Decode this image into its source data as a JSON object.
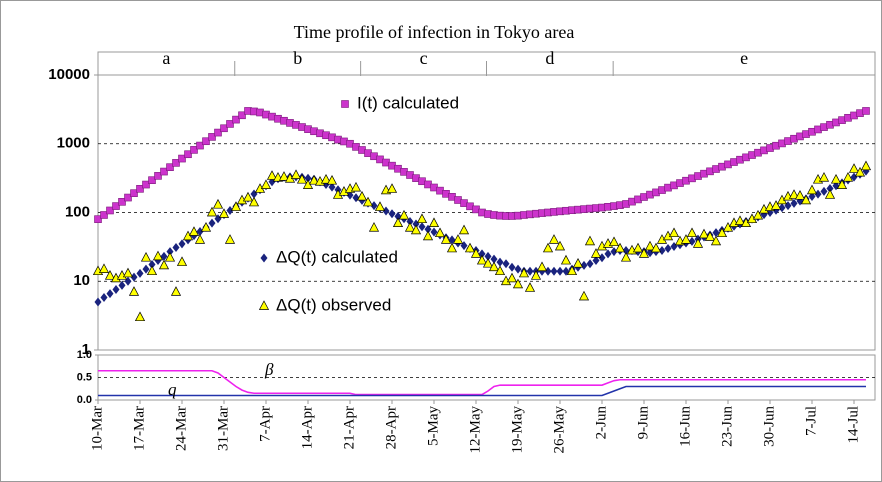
{
  "chart_data": {
    "type": "scatter",
    "title": "Time profile of infection in Tokyo area",
    "phases": [
      "a",
      "b",
      "c",
      "d",
      "e"
    ],
    "categories": [
      "10-Mar",
      null,
      null,
      null,
      null,
      null,
      null,
      "17-Mar",
      null,
      null,
      null,
      null,
      null,
      null,
      "24-Mar",
      null,
      null,
      null,
      null,
      null,
      null,
      "31-Mar",
      null,
      null,
      null,
      null,
      null,
      null,
      "7-Apr",
      null,
      null,
      null,
      null,
      null,
      null,
      "14-Apr",
      null,
      null,
      null,
      null,
      null,
      null,
      "21-Apr",
      null,
      null,
      null,
      null,
      null,
      null,
      "28-Apr",
      null,
      null,
      null,
      null,
      null,
      null,
      "5-May",
      null,
      null,
      null,
      null,
      null,
      null,
      "12-May",
      null,
      null,
      null,
      null,
      null,
      null,
      "19-May",
      null,
      null,
      null,
      null,
      null,
      null,
      "26-May",
      null,
      null,
      null,
      null,
      null,
      null,
      "2-Jun",
      null,
      null,
      null,
      null,
      null,
      null,
      "9-Jun",
      null,
      null,
      null,
      null,
      null,
      null,
      "16-Jun",
      null,
      null,
      null,
      null,
      null,
      null,
      "23-Jun",
      null,
      null,
      null,
      null,
      null,
      null,
      "30-Jun",
      null,
      null,
      null,
      null,
      null,
      null,
      "7-Jul",
      null,
      null,
      null,
      null,
      null,
      null,
      "14-Jul",
      null,
      null
    ],
    "ylim": [
      1,
      10000
    ],
    "yticks": [
      1,
      10,
      100,
      1000,
      10000
    ],
    "log_scale": true,
    "grid": true,
    "series": [
      {
        "name": "I(t) calculated",
        "color": "#cc33cc",
        "marker": "square",
        "values": [
          80,
          92,
          107,
          124,
          143,
          165,
          191,
          221,
          255,
          295,
          341,
          394,
          456,
          527,
          609,
          704,
          814,
          941,
          1088,
          1258,
          1454,
          1680,
          1942,
          2245,
          2595,
          3000,
          2950,
          2850,
          2660,
          2480,
          2310,
          2160,
          2010,
          1880,
          1750,
          1630,
          1520,
          1420,
          1330,
          1240,
          1150,
          1080,
          1000,
          900,
          811,
          730,
          658,
          592,
          533,
          480,
          433,
          390,
          351,
          316,
          285,
          256,
          231,
          208,
          187,
          169,
          152,
          137,
          123,
          111,
          100,
          95,
          92,
          90,
          89,
          89,
          90,
          92,
          94,
          96,
          98,
          100,
          102,
          104,
          106,
          108,
          110,
          112,
          114,
          116,
          118,
          121,
          124,
          128,
          133,
          144,
          155,
          168,
          182,
          196,
          212,
          230,
          248,
          268,
          290,
          314,
          339,
          367,
          397,
          429,
          464,
          501,
          542,
          586,
          634,
          685,
          741,
          801,
          866,
          936,
          1012,
          1094,
          1183,
          1279,
          1382,
          1494,
          1615,
          1746,
          1888,
          2041,
          2206,
          2385,
          2578,
          2787,
          3000
        ]
      },
      {
        "name": "ΔQ(t) calculated",
        "color": "#1a237e",
        "marker": "diamond",
        "values": [
          5,
          5.8,
          6.6,
          7.6,
          8.7,
          10,
          11.5,
          13,
          15,
          17.5,
          20,
          23,
          27,
          31,
          35,
          40,
          46,
          53,
          61,
          70,
          81,
          93,
          107,
          123,
          141,
          162,
          186,
          214,
          245,
          280,
          310,
          325,
          330,
          330,
          325,
          315,
          305,
          279,
          255,
          234,
          214,
          196,
          179,
          164,
          150,
          137,
          126,
          115,
          105,
          96,
          88,
          81,
          74,
          68,
          62,
          57,
          52,
          47,
          43,
          40,
          36,
          33,
          30,
          28,
          25,
          23,
          21,
          19,
          18,
          16,
          15,
          14,
          14,
          14,
          14,
          14,
          14,
          14,
          14,
          15,
          16,
          17,
          18,
          20,
          22,
          25,
          27,
          28,
          28,
          28,
          27,
          27,
          26,
          27,
          28,
          30,
          32,
          34,
          36,
          38,
          41,
          44,
          47,
          51,
          55,
          59,
          63,
          68,
          74,
          80,
          86,
          93,
          100,
          108,
          117,
          126,
          136,
          147,
          158,
          171,
          185,
          203,
          223,
          245,
          270,
          297,
          327,
          360,
          400
        ]
      },
      {
        "name": "ΔQ(t) observed",
        "color": "#ffff00",
        "marker": "triangle",
        "values": [
          14,
          15,
          12,
          11,
          12,
          13,
          7,
          3,
          22,
          14,
          23,
          17,
          22,
          7,
          19,
          45,
          52,
          40,
          60,
          100,
          130,
          95,
          40,
          120,
          150,
          165,
          140,
          220,
          250,
          340,
          320,
          330,
          310,
          350,
          300,
          250,
          290,
          280,
          300,
          290,
          180,
          200,
          220,
          230,
          170,
          140,
          60,
          120,
          210,
          220,
          70,
          90,
          60,
          55,
          80,
          45,
          70,
          50,
          40,
          30,
          40,
          55,
          30,
          25,
          20,
          18,
          16,
          14,
          10,
          11,
          9,
          13,
          8,
          12,
          16,
          30,
          40,
          32,
          20,
          14,
          18,
          6,
          38,
          25,
          32,
          35,
          37,
          30,
          22,
          28,
          30,
          25,
          32,
          30,
          40,
          45,
          50,
          38,
          40,
          50,
          35,
          48,
          44,
          38,
          50,
          60,
          70,
          75,
          70,
          80,
          90,
          110,
          120,
          125,
          150,
          170,
          180,
          175,
          150,
          210,
          300,
          320,
          180,
          300,
          250,
          320,
          430,
          380,
          470
        ]
      }
    ],
    "lower_panel": {
      "ylim": [
        0,
        1
      ],
      "yticks": [
        {
          "value": 0,
          "label": "0.0"
        },
        {
          "value": 0.5,
          "label": "0.5"
        },
        {
          "value": 1,
          "label": "1.0"
        }
      ],
      "series": [
        {
          "name": "β",
          "color": "#ee22ee",
          "values": [
            0.65,
            0.65,
            0.65,
            0.65,
            0.65,
            0.65,
            0.65,
            0.65,
            0.65,
            0.65,
            0.65,
            0.65,
            0.65,
            0.65,
            0.65,
            0.65,
            0.65,
            0.65,
            0.65,
            0.65,
            0.6,
            0.5,
            0.4,
            0.3,
            0.22,
            0.17,
            0.15,
            0.15,
            0.15,
            0.15,
            0.15,
            0.15,
            0.15,
            0.15,
            0.15,
            0.15,
            0.15,
            0.15,
            0.15,
            0.15,
            0.15,
            0.15,
            0.15,
            0.12,
            0.12,
            0.12,
            0.12,
            0.12,
            0.12,
            0.12,
            0.12,
            0.12,
            0.12,
            0.12,
            0.12,
            0.12,
            0.12,
            0.12,
            0.12,
            0.12,
            0.12,
            0.12,
            0.12,
            0.12,
            0.12,
            0.2,
            0.3,
            0.33,
            0.33,
            0.33,
            0.33,
            0.33,
            0.33,
            0.33,
            0.33,
            0.33,
            0.33,
            0.33,
            0.33,
            0.33,
            0.33,
            0.33,
            0.33,
            0.33,
            0.33,
            0.38,
            0.43,
            0.45,
            0.45,
            0.45,
            0.45,
            0.45,
            0.45,
            0.45,
            0.45,
            0.45,
            0.45,
            0.45,
            0.45,
            0.45,
            0.45,
            0.45,
            0.45,
            0.45,
            0.45,
            0.45,
            0.45,
            0.45,
            0.45,
            0.45,
            0.45,
            0.45,
            0.45,
            0.45,
            0.45,
            0.45,
            0.45,
            0.45,
            0.45,
            0.45,
            0.45,
            0.45,
            0.45,
            0.45,
            0.45,
            0.45,
            0.45,
            0.45,
            0.45
          ]
        },
        {
          "name": "q",
          "color": "#2233aa",
          "values": [
            0.1,
            0.1,
            0.1,
            0.1,
            0.1,
            0.1,
            0.1,
            0.1,
            0.1,
            0.1,
            0.1,
            0.1,
            0.1,
            0.1,
            0.1,
            0.1,
            0.1,
            0.1,
            0.1,
            0.1,
            0.1,
            0.1,
            0.1,
            0.1,
            0.1,
            0.1,
            0.1,
            0.1,
            0.1,
            0.1,
            0.1,
            0.1,
            0.1,
            0.1,
            0.1,
            0.1,
            0.1,
            0.1,
            0.1,
            0.1,
            0.1,
            0.1,
            0.1,
            0.1,
            0.1,
            0.1,
            0.1,
            0.1,
            0.1,
            0.1,
            0.1,
            0.1,
            0.1,
            0.1,
            0.1,
            0.1,
            0.1,
            0.1,
            0.1,
            0.1,
            0.1,
            0.1,
            0.1,
            0.1,
            0.1,
            0.1,
            0.1,
            0.1,
            0.1,
            0.1,
            0.1,
            0.1,
            0.1,
            0.1,
            0.1,
            0.1,
            0.1,
            0.1,
            0.1,
            0.1,
            0.1,
            0.1,
            0.1,
            0.1,
            0.1,
            0.15,
            0.2,
            0.25,
            0.3,
            0.3,
            0.3,
            0.3,
            0.3,
            0.3,
            0.3,
            0.3,
            0.3,
            0.3,
            0.3,
            0.3,
            0.3,
            0.3,
            0.3,
            0.3,
            0.3,
            0.3,
            0.3,
            0.3,
            0.3,
            0.3,
            0.3,
            0.3,
            0.3,
            0.3,
            0.3,
            0.3,
            0.3,
            0.3,
            0.3,
            0.3,
            0.3,
            0.3,
            0.3,
            0.3,
            0.3,
            0.3,
            0.3,
            0.3,
            0.3
          ]
        }
      ]
    }
  }
}
